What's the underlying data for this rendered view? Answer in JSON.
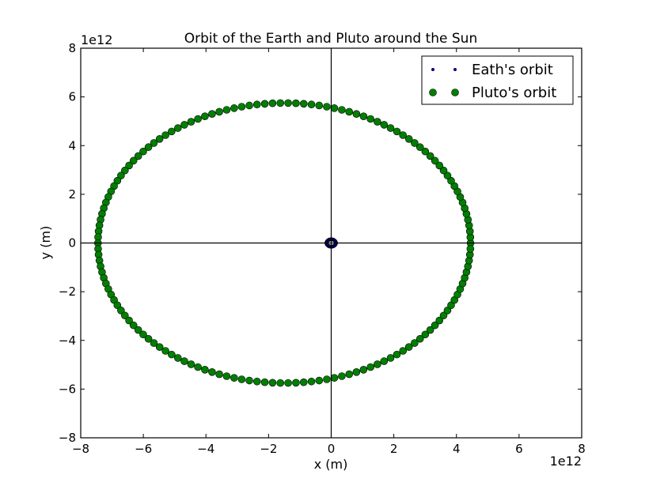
{
  "chart_data": {
    "type": "scatter",
    "title": "Orbit of the Earth and Pluto around the Sun",
    "xlabel": "x (m)",
    "ylabel": "y (m)",
    "x_offset_label": "1e12",
    "y_offset_label": "1e12",
    "xlim": [
      -8,
      8
    ],
    "ylim": [
      -8,
      8
    ],
    "xticks": [
      -8,
      -6,
      -4,
      -2,
      0,
      2,
      4,
      6,
      8
    ],
    "yticks": [
      -8,
      -6,
      -4,
      -2,
      0,
      2,
      4,
      6,
      8
    ],
    "xtick_labels": [
      "−8",
      "−6",
      "−4",
      "−2",
      "0",
      "2",
      "4",
      "6",
      "8"
    ],
    "ytick_labels": [
      "−8",
      "−6",
      "−4",
      "−2",
      "0",
      "2",
      "4",
      "6",
      "8"
    ],
    "grid": false,
    "axis_lines_through_origin": true,
    "legend_position": "top-right",
    "series": [
      {
        "name": "Eath's orbit",
        "color": "#00007f",
        "marker": "small-dot",
        "center": [
          0,
          0
        ],
        "semi_major_x": 0.15,
        "semi_minor_y": 0.15,
        "points": 60
      },
      {
        "name": "Pluto's orbit",
        "color": "#007f00",
        "marker": "circle",
        "center": [
          -1.5,
          0
        ],
        "semi_major_x": 5.95,
        "semi_minor_y": 5.75,
        "points": 150
      }
    ]
  }
}
